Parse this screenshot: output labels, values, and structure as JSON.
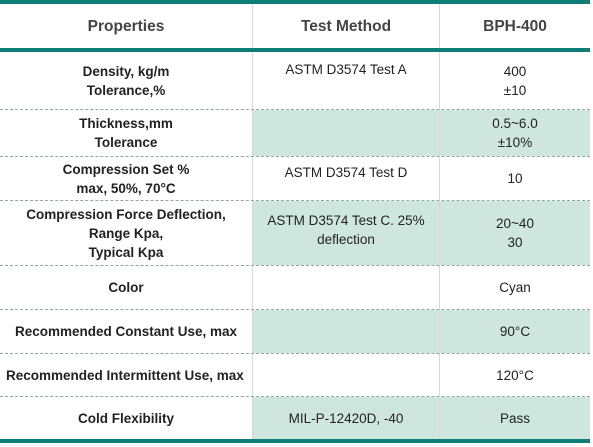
{
  "headers": {
    "properties": "Properties",
    "test_method": "Test Method",
    "product": "BPH-400"
  },
  "rows": [
    {
      "property_lines": [
        "Density, kg/m",
        "Tolerance,%"
      ],
      "method_lines": [
        "ASTM D3574 Test A"
      ],
      "value_lines": [
        "400",
        "±10"
      ]
    },
    {
      "property_lines": [
        "Thickness,mm",
        "Tolerance"
      ],
      "method_lines": [],
      "value_lines": [
        "0.5~6.0",
        "±10%"
      ]
    },
    {
      "property_lines": [
        "Compression Set %",
        "max, 50%, 70°C"
      ],
      "method_lines": [
        "ASTM D3574 Test D"
      ],
      "value_lines": [
        "10"
      ]
    },
    {
      "property_lines": [
        "Compression Force Deflection,",
        "Range Kpa,",
        "Typical Kpa"
      ],
      "method_lines": [
        "ASTM D3574 Test C. 25%",
        "deflection"
      ],
      "value_lines": [
        "20~40",
        "30"
      ]
    },
    {
      "property_lines": [
        "Color"
      ],
      "method_lines": [],
      "value_lines": [
        "Cyan"
      ]
    },
    {
      "property_lines": [
        "Recommended Constant Use, max"
      ],
      "method_lines": [],
      "value_lines": [
        "90°C"
      ]
    },
    {
      "property_lines": [
        "Recommended Intermittent Use, max"
      ],
      "method_lines": [],
      "value_lines": [
        "120°C"
      ]
    },
    {
      "property_lines": [
        "Cold Flexibility"
      ],
      "method_lines": [
        "MIL-P-12420D, -40"
      ],
      "value_lines": [
        "Pass"
      ]
    }
  ],
  "colors": {
    "accent": "#0e7d76",
    "shade": "#cfe6df"
  }
}
